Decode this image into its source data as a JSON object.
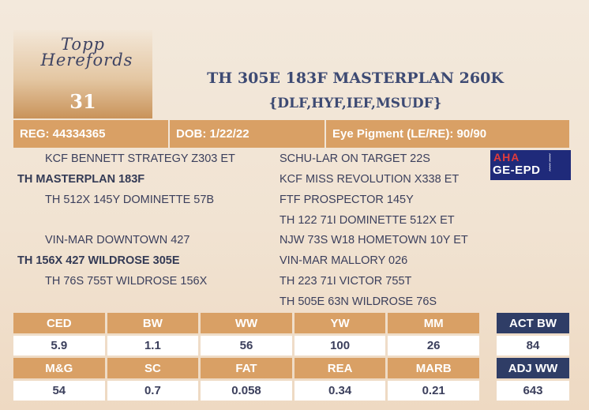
{
  "logo": {
    "line1": "Topp",
    "line2": "Herefords"
  },
  "lot_number": "31",
  "title": "TH 305E 183F MASTERPLAN 260K",
  "subtitle": "{DLF,HYF,IEF,MSUDF}",
  "info_bar": {
    "reg": "REG: 44334365",
    "dob": "DOB: 1/22/22",
    "eye": "Eye Pigment (LE/RE): 90/90"
  },
  "pedigree": {
    "sire_sire": "KCF BENNETT STRATEGY Z303 ET",
    "sire": "TH MASTERPLAN 183F",
    "sire_dam": "TH 512X 145Y DOMINETTE 57B",
    "dam_sire": "VIN-MAR DOWNTOWN 427",
    "dam": "TH 156X 427 WILDROSE 305E",
    "dam_dam": "TH 76S 755T WILDROSE 156X",
    "right": [
      "SCHU-LAR ON TARGET 22S",
      "KCF MISS REVOLUTION X338 ET",
      "FTF PROSPECTOR 145Y",
      "TH 122 71I DOMINETTE 512X ET",
      "NJW 73S W18 HOMETOWN 10Y ET",
      "VIN-MAR MALLORY 026",
      "TH 223 71I VICTOR 755T",
      "TH 505E 63N WILDROSE 76S"
    ]
  },
  "badge": {
    "top": "AHA",
    "bottom": "GE-EPD",
    "icon": "dna-icon"
  },
  "epd": {
    "row1_headers": [
      "CED",
      "BW",
      "WW",
      "YW",
      "MM"
    ],
    "row1_values": [
      "5.9",
      "1.1",
      "56",
      "100",
      "26"
    ],
    "row2_headers": [
      "M&G",
      "SC",
      "FAT",
      "REA",
      "MARB"
    ],
    "row2_values": [
      "54",
      "0.7",
      "0.058",
      "0.34",
      "0.21"
    ]
  },
  "side": {
    "act_bw_label": "ACT BW",
    "act_bw_value": "84",
    "adj_ww_label": "ADJ WW",
    "adj_ww_value": "643"
  },
  "colors": {
    "accent": "#d9a065",
    "navy": "#2f3d66",
    "title": "#3d4a73",
    "background": "#f2e6d8"
  }
}
